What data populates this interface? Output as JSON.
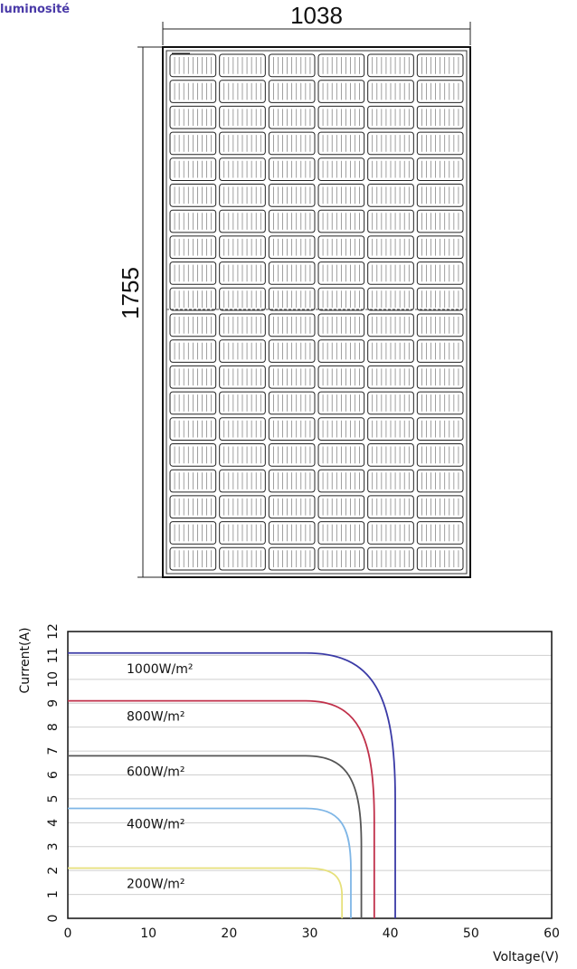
{
  "header": {
    "text": "luminosité"
  },
  "panel": {
    "width_label": "1038",
    "height_label": "1755"
  },
  "chart_data": {
    "type": "line",
    "xlabel": "Voltage(V)",
    "ylabel": "Current(A)",
    "xlim": [
      0,
      60
    ],
    "ylim": [
      0,
      12
    ],
    "xticks": [
      0,
      10,
      20,
      30,
      40,
      50,
      60
    ],
    "yticks": [
      0,
      1,
      2,
      3,
      4,
      5,
      6,
      7,
      8,
      9,
      10,
      11,
      12
    ],
    "grid": "horizontal",
    "series": [
      {
        "name": "1000W/m²",
        "color": "#3a3aa6",
        "isc": 11.1,
        "voc": 40.6,
        "knee": 29.5
      },
      {
        "name": "800W/m²",
        "color": "#c0304a",
        "isc": 9.1,
        "voc": 38.0,
        "knee": 29.5
      },
      {
        "name": "600W/m²",
        "color": "#555555",
        "isc": 6.8,
        "voc": 36.4,
        "knee": 29.5
      },
      {
        "name": "400W/m²",
        "color": "#7fb6e6",
        "isc": 4.6,
        "voc": 35.1,
        "knee": 29.5
      },
      {
        "name": "200W/m²",
        "color": "#e6e07a",
        "isc": 2.1,
        "voc": 34.0,
        "knee": 29.5
      }
    ]
  }
}
